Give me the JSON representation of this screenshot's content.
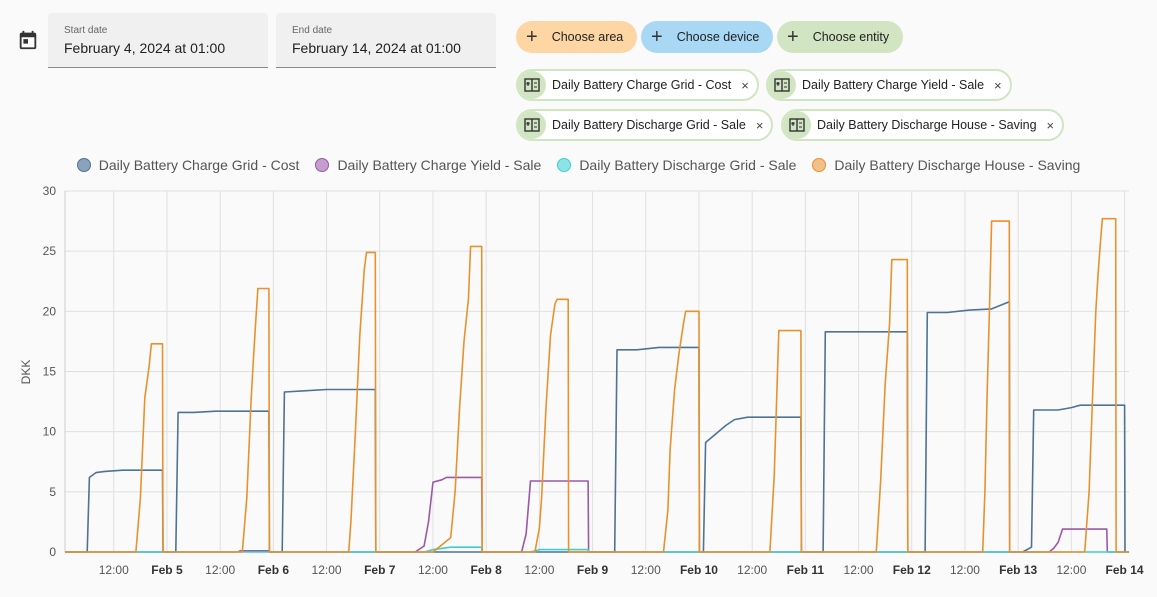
{
  "icons": {
    "calendar": "calendar-icon",
    "add": "plus-icon",
    "entity": "counter-icon",
    "remove": "close-icon"
  },
  "date_picker": {
    "start": {
      "label": "Start date",
      "value": "February 4, 2024 at 01:00"
    },
    "end": {
      "label": "End date",
      "value": "February 14, 2024 at 01:00"
    }
  },
  "target_buttons": {
    "area": "Choose area",
    "device": "Choose device",
    "entity": "Choose entity"
  },
  "selected_entities": [
    {
      "label": "Daily Battery Charge Grid - Cost",
      "remove": "×"
    },
    {
      "label": "Daily Battery Charge Yield - Sale",
      "remove": "×"
    },
    {
      "label": "Daily Battery Discharge Grid - Sale",
      "remove": "×"
    },
    {
      "label": "Daily Battery Discharge House - Saving",
      "remove": "×"
    }
  ],
  "colors": {
    "charge_grid": "#4e7394",
    "charge_yield": "#9b59a8",
    "discharge_grid": "#3ecfcf",
    "discharge_house": "#e8922e",
    "grid": "#e0e0e0",
    "tick": "#555555"
  },
  "chart_data": {
    "type": "line",
    "title": "",
    "xlabel": "",
    "ylabel": "DKK",
    "ylim": [
      0,
      30
    ],
    "yticks": [
      "0",
      "5",
      "10",
      "15",
      "20",
      "25",
      "30"
    ],
    "xlim_hours": [
      1,
      241
    ],
    "xticks": [
      {
        "h": 12,
        "label": "12:00",
        "bold": false
      },
      {
        "h": 24,
        "label": "Feb 5",
        "bold": true
      },
      {
        "h": 36,
        "label": "12:00",
        "bold": false
      },
      {
        "h": 48,
        "label": "Feb 6",
        "bold": true
      },
      {
        "h": 60,
        "label": "12:00",
        "bold": false
      },
      {
        "h": 72,
        "label": "Feb 7",
        "bold": true
      },
      {
        "h": 84,
        "label": "12:00",
        "bold": false
      },
      {
        "h": 96,
        "label": "Feb 8",
        "bold": true
      },
      {
        "h": 108,
        "label": "12:00",
        "bold": false
      },
      {
        "h": 120,
        "label": "Feb 9",
        "bold": true
      },
      {
        "h": 132,
        "label": "12:00",
        "bold": false
      },
      {
        "h": 144,
        "label": "Feb 10",
        "bold": true
      },
      {
        "h": 156,
        "label": "12:00",
        "bold": false
      },
      {
        "h": 168,
        "label": "Feb 11",
        "bold": true
      },
      {
        "h": 180,
        "label": "12:00",
        "bold": false
      },
      {
        "h": 192,
        "label": "Feb 12",
        "bold": true
      },
      {
        "h": 204,
        "label": "12:00",
        "bold": false
      },
      {
        "h": 216,
        "label": "Feb 13",
        "bold": true
      },
      {
        "h": 228,
        "label": "12:00",
        "bold": false
      },
      {
        "h": 240,
        "label": "Feb 14",
        "bold": true
      }
    ],
    "series": [
      {
        "name": "Daily Battery Charge Grid - Cost",
        "color_key": "charge_grid",
        "points": [
          [
            1,
            0
          ],
          [
            6,
            0
          ],
          [
            6.5,
            6.2
          ],
          [
            8,
            6.6
          ],
          [
            10,
            6.7
          ],
          [
            14,
            6.8
          ],
          [
            23,
            6.8
          ],
          [
            23.1,
            0
          ],
          [
            25,
            0
          ],
          [
            26,
            0
          ],
          [
            26.5,
            11.6
          ],
          [
            30,
            11.6
          ],
          [
            35,
            11.7
          ],
          [
            47,
            11.7
          ],
          [
            47.1,
            0
          ],
          [
            50,
            0
          ],
          [
            50.5,
            13.3
          ],
          [
            55,
            13.4
          ],
          [
            60,
            13.5
          ],
          [
            71,
            13.5
          ],
          [
            71.1,
            0
          ],
          [
            95,
            0
          ],
          [
            95.1,
            0
          ],
          [
            119,
            0
          ],
          [
            119.1,
            0
          ],
          [
            125,
            0
          ],
          [
            125.5,
            16.8
          ],
          [
            130,
            16.8
          ],
          [
            135,
            17.0
          ],
          [
            144,
            17.0
          ],
          [
            144.1,
            0
          ],
          [
            145,
            0
          ],
          [
            145.5,
            9.1
          ],
          [
            150,
            10.5
          ],
          [
            152,
            11.0
          ],
          [
            155,
            11.2
          ],
          [
            167,
            11.2
          ],
          [
            167.1,
            0
          ],
          [
            172,
            0
          ],
          [
            172.5,
            18.3
          ],
          [
            191,
            18.3
          ],
          [
            191.1,
            0
          ],
          [
            195,
            0
          ],
          [
            195.5,
            19.9
          ],
          [
            200,
            19.9
          ],
          [
            205,
            20.1
          ],
          [
            210,
            20.2
          ],
          [
            214,
            20.8
          ],
          [
            214.1,
            0
          ],
          [
            217,
            0
          ],
          [
            219,
            0.4
          ],
          [
            219.5,
            11.8
          ],
          [
            225,
            11.8
          ],
          [
            228,
            12.0
          ],
          [
            230,
            12.2
          ],
          [
            240,
            12.2
          ],
          [
            240.1,
            0
          ],
          [
            241,
            0
          ]
        ]
      },
      {
        "name": "Daily Battery Charge Yield - Sale",
        "color_key": "charge_yield",
        "points": [
          [
            1,
            0
          ],
          [
            40,
            0
          ],
          [
            40.5,
            0.1
          ],
          [
            47,
            0.1
          ],
          [
            47.1,
            0
          ],
          [
            80,
            0
          ],
          [
            82,
            0.5
          ],
          [
            83,
            2.5
          ],
          [
            84,
            5.8
          ],
          [
            86,
            6.0
          ],
          [
            87,
            6.2
          ],
          [
            95,
            6.2
          ],
          [
            95.1,
            0
          ],
          [
            104,
            0
          ],
          [
            105,
            1.5
          ],
          [
            106,
            5.9
          ],
          [
            119,
            5.9
          ],
          [
            119.1,
            0
          ],
          [
            216,
            0
          ],
          [
            223,
            0
          ],
          [
            224,
            0.3
          ],
          [
            225,
            0.8
          ],
          [
            226,
            1.9
          ],
          [
            236,
            1.9
          ],
          [
            236.1,
            0
          ],
          [
            241,
            0
          ]
        ]
      },
      {
        "name": "Daily Battery Discharge Grid - Sale",
        "color_key": "discharge_grid",
        "points": [
          [
            1,
            0
          ],
          [
            82,
            0
          ],
          [
            84,
            0.2
          ],
          [
            86,
            0.3
          ],
          [
            88,
            0.4
          ],
          [
            95,
            0.4
          ],
          [
            95.1,
            0
          ],
          [
            106,
            0
          ],
          [
            108,
            0.2
          ],
          [
            119,
            0.2
          ],
          [
            119.1,
            0
          ],
          [
            241,
            0
          ]
        ]
      },
      {
        "name": "Daily Battery Discharge House - Saving",
        "color_key": "discharge_house",
        "points": [
          [
            1,
            0
          ],
          [
            17,
            0
          ],
          [
            18,
            4.5
          ],
          [
            19,
            12.8
          ],
          [
            20,
            15.5
          ],
          [
            20.5,
            17.3
          ],
          [
            23,
            17.3
          ],
          [
            23.1,
            0
          ],
          [
            41,
            0
          ],
          [
            42,
            4.5
          ],
          [
            43,
            12.8
          ],
          [
            43.5,
            16.0
          ],
          [
            44,
            19.0
          ],
          [
            44.5,
            21.9
          ],
          [
            47,
            21.9
          ],
          [
            47.1,
            0
          ],
          [
            65,
            0
          ],
          [
            65.5,
            2.5
          ],
          [
            66.5,
            10.0
          ],
          [
            67.5,
            18.0
          ],
          [
            68.5,
            23.5
          ],
          [
            69,
            24.9
          ],
          [
            71,
            24.9
          ],
          [
            71.1,
            0
          ],
          [
            84,
            0
          ],
          [
            87,
            0.9
          ],
          [
            88,
            1.2
          ],
          [
            89,
            5.0
          ],
          [
            90,
            12.0
          ],
          [
            91,
            17.5
          ],
          [
            92,
            21.0
          ],
          [
            92.5,
            25.4
          ],
          [
            95,
            25.4
          ],
          [
            95.1,
            0
          ],
          [
            107,
            0
          ],
          [
            108,
            2.0
          ],
          [
            108.5,
            4.5
          ],
          [
            109.5,
            12.0
          ],
          [
            110.5,
            18.0
          ],
          [
            111.5,
            20.6
          ],
          [
            112,
            21.0
          ],
          [
            114.5,
            21.0
          ],
          [
            114.6,
            0
          ],
          [
            136,
            0
          ],
          [
            137,
            3.5
          ],
          [
            137.5,
            8.5
          ],
          [
            138.5,
            13.5
          ],
          [
            139.5,
            16.5
          ],
          [
            140.5,
            19.0
          ],
          [
            141,
            20.0
          ],
          [
            144,
            20.0
          ],
          [
            144.1,
            0
          ],
          [
            160,
            0
          ],
          [
            161,
            6.5
          ],
          [
            162,
            18.4
          ],
          [
            167,
            18.4
          ],
          [
            167.1,
            0
          ],
          [
            184,
            0
          ],
          [
            185,
            6.0
          ],
          [
            186,
            14.0
          ],
          [
            187,
            19.0
          ],
          [
            187.5,
            24.3
          ],
          [
            191,
            24.3
          ],
          [
            191.1,
            0
          ],
          [
            208,
            0
          ],
          [
            208.5,
            5.0
          ],
          [
            209,
            13.0
          ],
          [
            209.5,
            20.0
          ],
          [
            210,
            27.5
          ],
          [
            214,
            27.5
          ],
          [
            214.1,
            0
          ],
          [
            231,
            0
          ],
          [
            232,
            5.0
          ],
          [
            232.5,
            10.0
          ],
          [
            233,
            15.0
          ],
          [
            233.5,
            20.0
          ],
          [
            234,
            23.0
          ],
          [
            234.5,
            25.5
          ],
          [
            235,
            27.7
          ],
          [
            238,
            27.7
          ],
          [
            238.1,
            0
          ],
          [
            241,
            0
          ]
        ]
      }
    ]
  }
}
